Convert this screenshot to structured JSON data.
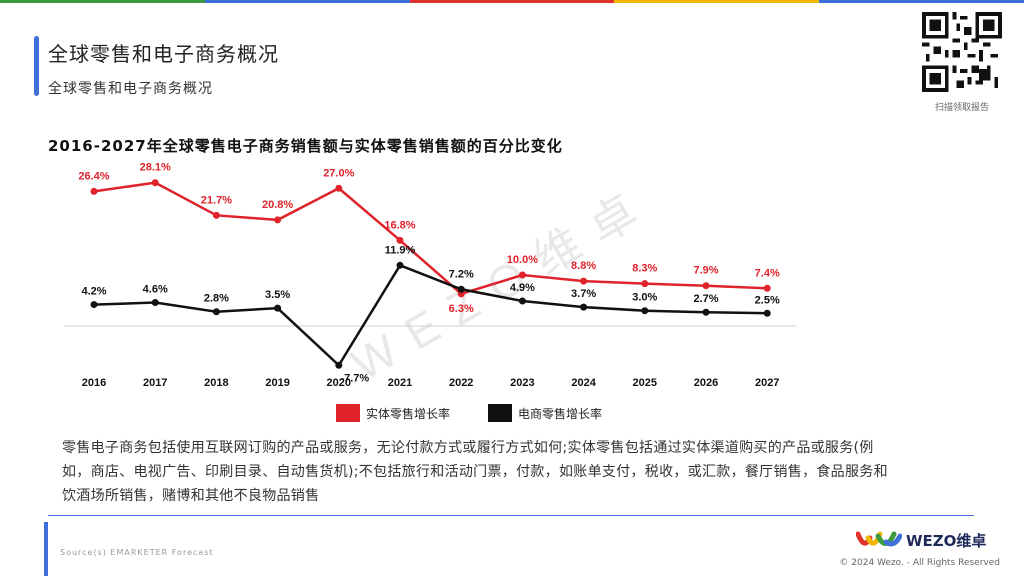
{
  "header": {
    "title": "全球零售和电子商务概况",
    "subtitle": "全球零售和电子商务概况"
  },
  "qr": {
    "caption": "扫描领取报告"
  },
  "colors": {
    "physical": "#e0222b",
    "ecommerce": "#111111",
    "accent": "#3f6fd8"
  },
  "chart_data": {
    "type": "line",
    "title": "2016-2027年全球零售电子商务销售额与实体零售销售额的百分比变化",
    "categories": [
      "2016",
      "2017",
      "2018",
      "2019",
      "2020",
      "2021",
      "2022",
      "2023",
      "2024",
      "2025",
      "2026",
      "2027"
    ],
    "series": [
      {
        "name": "实体零售增长率",
        "color": "#e0222b",
        "values": [
          26.4,
          28.1,
          21.7,
          20.8,
          27.0,
          16.8,
          6.3,
          10.0,
          8.8,
          8.3,
          7.9,
          7.4
        ],
        "labels": [
          "26.4%",
          "28.1%",
          "21.7%",
          "20.8%",
          "27.0%",
          "16.8%",
          "6.3%",
          "10.0%",
          "8.8%",
          "8.3%",
          "7.9%",
          "7.4%"
        ]
      },
      {
        "name": "电商零售增长率",
        "color": "#111111",
        "values": [
          4.2,
          4.6,
          2.8,
          3.5,
          -7.7,
          11.9,
          7.2,
          4.9,
          3.7,
          3.0,
          2.7,
          2.5
        ],
        "labels": [
          "4.2%",
          "4.6%",
          "2.8%",
          "3.5%",
          "-7.7%",
          "11.9%",
          "7.2%",
          "4.9%",
          "3.7%",
          "3.0%",
          "2.7%",
          "2.5%"
        ]
      }
    ],
    "ylim": [
      -8,
      30
    ],
    "xlabel": "",
    "ylabel": "",
    "legend": "bottom-center"
  },
  "watermark": "WEZO维卓",
  "note": "零售电子商务包括使用互联网订购的产品或服务，无论付款方式或履行方式如何;实体零售包括通过实体渠道购买的产品或服务(例如，商店、电视广告、印刷目录、自动售货机);不包括旅行和活动门票，付款，如账单支付，税收，或汇款，餐厅销售，食品服务和饮酒场所销售，赌博和其他不良物品销售",
  "footer": {
    "source": "Source(s)  EMARKETER Forecast",
    "logo": "WEZO维卓",
    "copyright": "© 2024 Wezo. - All Rights Reserved"
  }
}
